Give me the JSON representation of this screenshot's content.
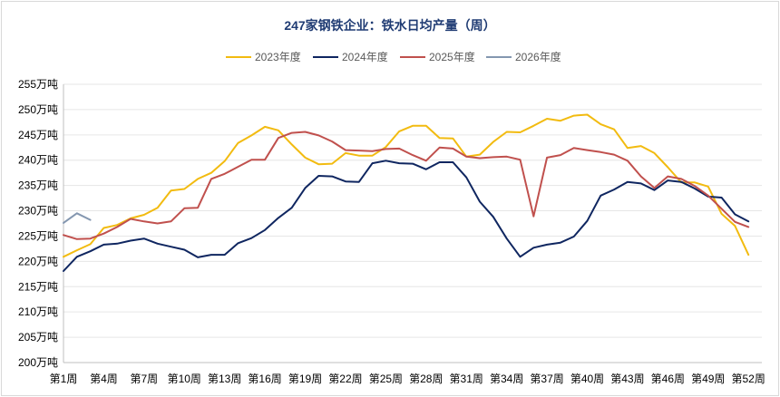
{
  "chart_data": {
    "type": "line",
    "title": "247家钢铁企业：铁水日均产量（周）",
    "ylim": [
      200,
      255
    ],
    "y_ticks": [
      200,
      205,
      210,
      215,
      220,
      225,
      230,
      235,
      240,
      245,
      250,
      255
    ],
    "y_tick_labels": [
      "200万吨",
      "205万吨",
      "210万吨",
      "215万吨",
      "220万吨",
      "225万吨",
      "230万吨",
      "235万吨",
      "240万吨",
      "245万吨",
      "250万吨",
      "255万吨"
    ],
    "x_ticks": [
      1,
      4,
      7,
      10,
      13,
      16,
      19,
      22,
      25,
      28,
      31,
      34,
      37,
      40,
      43,
      46,
      49,
      52
    ],
    "x_tick_labels": [
      "第1周",
      "第4周",
      "第7周",
      "第10周",
      "第13周",
      "第16周",
      "第19周",
      "第22周",
      "第25周",
      "第28周",
      "第31周",
      "第34周",
      "第37周",
      "第40周",
      "第43周",
      "第46周",
      "第49周",
      "第52周"
    ],
    "xlim": [
      1,
      53
    ],
    "grid": true,
    "legend_position": "top",
    "series": [
      {
        "name": "2023年度",
        "color": "#f2bb10",
        "x": [
          1,
          2,
          3,
          4,
          5,
          6,
          7,
          8,
          9,
          10,
          11,
          12,
          13,
          14,
          15,
          16,
          17,
          18,
          19,
          20,
          21,
          22,
          23,
          24,
          25,
          26,
          27,
          28,
          29,
          30,
          31,
          32,
          33,
          34,
          35,
          36,
          37,
          38,
          39,
          40,
          41,
          42,
          43,
          44,
          45,
          46,
          47,
          48,
          49,
          50,
          51,
          52
        ],
        "values": [
          220.9,
          222.2,
          223.4,
          226.6,
          227.2,
          228.5,
          229.2,
          230.6,
          234.0,
          234.3,
          236.3,
          237.5,
          239.8,
          243.4,
          244.9,
          246.6,
          245.9,
          243.1,
          240.5,
          239.2,
          239.3,
          241.4,
          240.9,
          240.9,
          242.6,
          245.7,
          246.8,
          246.8,
          244.4,
          244.3,
          240.7,
          241.1,
          243.6,
          245.6,
          245.5,
          246.8,
          248.2,
          247.8,
          248.8,
          249.0,
          247.1,
          246.1,
          242.4,
          242.8,
          241.4,
          238.6,
          235.6,
          235.6,
          234.8,
          229.4,
          227.0,
          221.3
        ]
      },
      {
        "name": "2024年度",
        "color": "#0f2660",
        "x": [
          1,
          2,
          3,
          4,
          5,
          6,
          7,
          8,
          9,
          10,
          11,
          12,
          13,
          14,
          15,
          16,
          17,
          18,
          19,
          20,
          21,
          22,
          23,
          24,
          25,
          26,
          27,
          28,
          29,
          30,
          31,
          32,
          33,
          34,
          35,
          36,
          37,
          38,
          39,
          40,
          41,
          42,
          43,
          44,
          45,
          46,
          47,
          48,
          49,
          50,
          51,
          52
        ],
        "values": [
          218.1,
          220.9,
          222.0,
          223.3,
          223.5,
          224.1,
          224.5,
          223.5,
          222.9,
          222.3,
          220.8,
          221.3,
          221.3,
          223.6,
          224.6,
          226.2,
          228.6,
          230.6,
          234.5,
          236.9,
          236.8,
          235.8,
          235.7,
          239.4,
          239.9,
          239.4,
          239.3,
          238.2,
          239.6,
          239.6,
          236.6,
          231.8,
          228.8,
          224.5,
          220.9,
          222.7,
          223.3,
          223.7,
          224.9,
          228.0,
          233.0,
          234.2,
          235.7,
          235.4,
          234.1,
          236.0,
          235.7,
          234.4,
          232.8,
          232.6,
          229.3,
          227.9
        ]
      },
      {
        "name": "2025年度",
        "color": "#c0504d",
        "x": [
          1,
          2,
          3,
          4,
          5,
          6,
          7,
          8,
          9,
          10,
          11,
          12,
          13,
          14,
          15,
          16,
          17,
          18,
          19,
          20,
          21,
          22,
          23,
          24,
          25,
          26,
          27,
          28,
          29,
          30,
          31,
          32,
          33,
          34,
          35,
          36,
          37,
          38,
          39,
          40,
          41,
          42,
          43,
          44,
          45,
          46,
          47,
          48,
          49,
          50,
          51,
          52
        ],
        "values": [
          225.2,
          224.4,
          224.5,
          225.5,
          226.8,
          228.4,
          227.9,
          227.5,
          227.9,
          230.5,
          230.6,
          236.3,
          237.3,
          238.7,
          240.1,
          240.1,
          244.4,
          245.4,
          245.6,
          244.9,
          243.7,
          242.0,
          241.9,
          241.8,
          242.2,
          242.3,
          241.0,
          239.9,
          242.5,
          242.3,
          240.7,
          240.4,
          240.6,
          240.7,
          240.1,
          228.9,
          240.5,
          241.0,
          242.4,
          242.0,
          241.6,
          241.1,
          239.9,
          236.8,
          234.5,
          236.8,
          236.3,
          234.9,
          233.0,
          230.4,
          227.8,
          226.8
        ]
      },
      {
        "name": "2026年度",
        "color": "#8497b0",
        "x": [
          1,
          2,
          3
        ],
        "values": [
          227.6,
          229.5,
          228.2
        ]
      }
    ]
  }
}
